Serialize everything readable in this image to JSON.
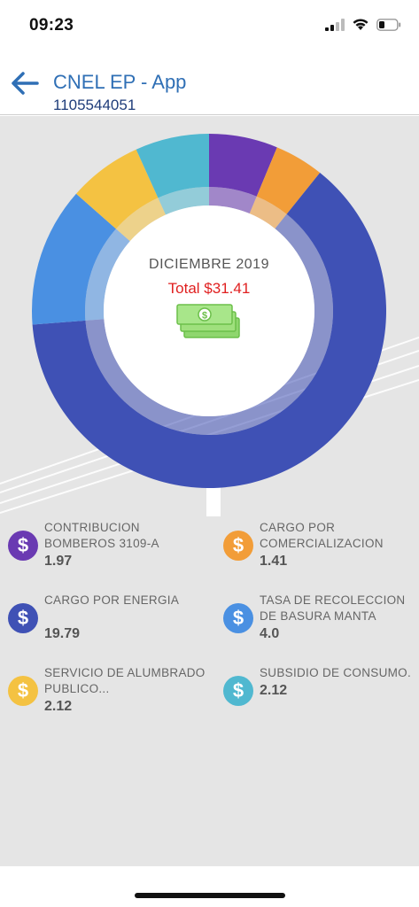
{
  "status_bar": {
    "time": "09:23"
  },
  "header": {
    "title": "CNEL EP - App",
    "subtitle": "1105544051"
  },
  "colors": {
    "contribucion": "#6a3ab2",
    "comercializacion": "#f29d38",
    "energia": "#3f51b5",
    "recoleccion": "#4a90e2",
    "alumbrado": "#f4c242",
    "subsidio": "#50b8d0"
  },
  "chart_data": {
    "type": "pie",
    "title": "DICIEMBRE 2019",
    "total_label": "Total $31.41",
    "categories": [
      "CONTRIBUCION BOMBEROS 3109-A",
      "CARGO POR COMERCIALIZACION",
      "CARGO POR ENERGIA",
      "TASA DE RECOLECCION DE BASURA MANTA",
      "SERVICIO DE ALUMBRADO PUBLICO...",
      "SUBSIDIO DE CONSUMO."
    ],
    "values": [
      1.97,
      1.41,
      19.79,
      4.0,
      2.12,
      2.12
    ],
    "legend": "bottom"
  },
  "legend": [
    {
      "label": "CONTRIBUCION BOMBEROS 3109-A",
      "value": "1.97",
      "icon": "dollar-icon"
    },
    {
      "label": "CARGO POR COMERCIALIZACION",
      "value": "1.41",
      "icon": "dollar-icon"
    },
    {
      "label": "CARGO POR ENERGIA",
      "value": "19.79",
      "icon": "dollar-icon"
    },
    {
      "label": "TASA DE RECOLECCION DE BASURA MANTA",
      "value": "4.0",
      "icon": "dollar-icon"
    },
    {
      "label": "SERVICIO DE ALUMBRADO PUBLICO...",
      "value": "2.12",
      "icon": "dollar-icon"
    },
    {
      "label": "SUBSIDIO DE CONSUMO.",
      "value": "2.12",
      "icon": "dollar-icon"
    }
  ]
}
